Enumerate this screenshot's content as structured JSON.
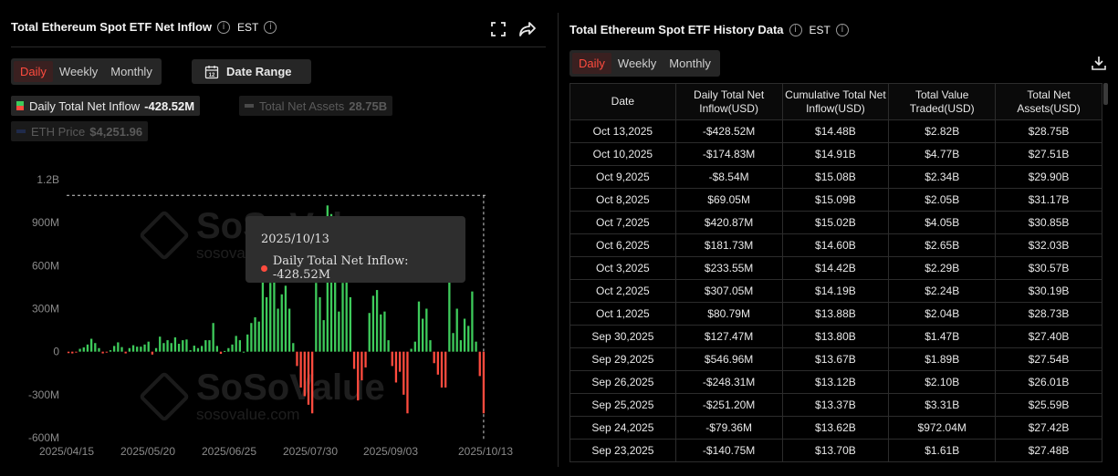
{
  "left": {
    "title": "Total Ethereum Spot ETF Net Inflow",
    "timezone": "EST",
    "tabs": [
      {
        "label": "Daily",
        "active": true
      },
      {
        "label": "Weekly",
        "active": false
      },
      {
        "label": "Monthly",
        "active": false
      }
    ],
    "date_range_label": "Date Range",
    "legend": {
      "daily": {
        "label": "Daily Total Net Inflow",
        "value": "-428.52M"
      },
      "assets": {
        "label": "Total Net Assets",
        "value": "28.75B"
      },
      "eth": {
        "label": "ETH Price",
        "value": "$4,251.96"
      }
    },
    "tooltip": {
      "date": "2025/10/13",
      "text": "Daily Total Net Inflow: -428.52M"
    },
    "watermark": {
      "brand": "SoSoValue",
      "url": "sosovalue.com"
    }
  },
  "chart_data": {
    "type": "bar",
    "y_ticks": [
      "1.2B",
      "900M",
      "600M",
      "300M",
      "0",
      "-300M",
      "-600M"
    ],
    "y_tick_values": [
      1200,
      900,
      600,
      300,
      0,
      -300,
      -600
    ],
    "ylim": [
      -600,
      1200
    ],
    "unit": "M",
    "x_ticks": [
      "2025/04/15",
      "2025/05/20",
      "2025/06/25",
      "2025/07/30",
      "2025/09/03",
      "2025/10/13"
    ],
    "series": [
      {
        "name": "Daily Total Net Inflow",
        "color_positive": "#3ecb5b",
        "color_negative": "#ff4b3e",
        "values": [
          -10,
          -12,
          -5,
          20,
          30,
          50,
          90,
          60,
          25,
          -12,
          -5,
          10,
          40,
          65,
          32,
          -12,
          25,
          45,
          35,
          35,
          50,
          70,
          -20,
          25,
          105,
          60,
          80,
          60,
          100,
          55,
          80,
          85,
          10,
          42,
          25,
          40,
          80,
          80,
          200,
          40,
          -15,
          5,
          25,
          50,
          110,
          80,
          0,
          120,
          200,
          240,
          210,
          600,
          380,
          480,
          520,
          300,
          400,
          460,
          300,
          60,
          -100,
          -250,
          -310,
          -370,
          -430,
          480,
          380,
          220,
          1020,
          960,
          580,
          280,
          480,
          500,
          380,
          -120,
          -340,
          -200,
          -110,
          270,
          390,
          430,
          260,
          280,
          80,
          -100,
          -215,
          -140,
          -300,
          -430,
          20,
          70,
          350,
          230,
          300,
          80,
          -80,
          -160,
          -250,
          -250,
          540,
          130,
          300,
          80,
          230,
          180,
          420,
          70,
          -170,
          -430
        ]
      }
    ],
    "dotted_max_value": 1090,
    "highlight_index": 109
  },
  "right": {
    "title": "Total Ethereum Spot ETF History Data",
    "timezone": "EST",
    "tabs": [
      {
        "label": "Daily",
        "active": true
      },
      {
        "label": "Weekly",
        "active": false
      },
      {
        "label": "Monthly",
        "active": false
      }
    ],
    "headers": [
      "Date",
      "Daily Total Net Inflow(USD)",
      "Cumulative Total Net Inflow(USD)",
      "Total Value Traded(USD)",
      "Total Net Assets(USD)"
    ],
    "rows": [
      {
        "date": "Oct 13,2025",
        "inflow": "-$428.52M",
        "sign": "neg",
        "cum": "$14.48B",
        "traded": "$2.82B",
        "assets": "$28.75B"
      },
      {
        "date": "Oct 10,2025",
        "inflow": "-$174.83M",
        "sign": "neg",
        "cum": "$14.91B",
        "traded": "$4.77B",
        "assets": "$27.51B"
      },
      {
        "date": "Oct 9,2025",
        "inflow": "-$8.54M",
        "sign": "neg",
        "cum": "$15.08B",
        "traded": "$2.34B",
        "assets": "$29.90B"
      },
      {
        "date": "Oct 8,2025",
        "inflow": "$69.05M",
        "sign": "pos",
        "cum": "$15.09B",
        "traded": "$2.05B",
        "assets": "$31.17B"
      },
      {
        "date": "Oct 7,2025",
        "inflow": "$420.87M",
        "sign": "pos",
        "cum": "$15.02B",
        "traded": "$4.05B",
        "assets": "$30.85B"
      },
      {
        "date": "Oct 6,2025",
        "inflow": "$181.73M",
        "sign": "pos",
        "cum": "$14.60B",
        "traded": "$2.65B",
        "assets": "$32.03B"
      },
      {
        "date": "Oct 3,2025",
        "inflow": "$233.55M",
        "sign": "pos",
        "cum": "$14.42B",
        "traded": "$2.29B",
        "assets": "$30.57B"
      },
      {
        "date": "Oct 2,2025",
        "inflow": "$307.05M",
        "sign": "pos",
        "cum": "$14.19B",
        "traded": "$2.24B",
        "assets": "$30.19B"
      },
      {
        "date": "Oct 1,2025",
        "inflow": "$80.79M",
        "sign": "pos",
        "cum": "$13.88B",
        "traded": "$2.04B",
        "assets": "$28.73B"
      },
      {
        "date": "Sep 30,2025",
        "inflow": "$127.47M",
        "sign": "pos",
        "cum": "$13.80B",
        "traded": "$1.47B",
        "assets": "$27.40B"
      },
      {
        "date": "Sep 29,2025",
        "inflow": "$546.96M",
        "sign": "pos",
        "cum": "$13.67B",
        "traded": "$1.89B",
        "assets": "$27.54B"
      },
      {
        "date": "Sep 26,2025",
        "inflow": "-$248.31M",
        "sign": "neg",
        "cum": "$13.12B",
        "traded": "$2.10B",
        "assets": "$26.01B"
      },
      {
        "date": "Sep 25,2025",
        "inflow": "-$251.20M",
        "sign": "neg",
        "cum": "$13.37B",
        "traded": "$3.31B",
        "assets": "$25.59B"
      },
      {
        "date": "Sep 24,2025",
        "inflow": "-$79.36M",
        "sign": "neg",
        "cum": "$13.62B",
        "traded": "$972.04M",
        "assets": "$27.42B"
      },
      {
        "date": "Sep 23,2025",
        "inflow": "-$140.75M",
        "sign": "neg",
        "cum": "$13.70B",
        "traded": "$1.61B",
        "assets": "$27.48B"
      }
    ]
  },
  "colors": {
    "accent": "#ff4b3e",
    "positive": "#3ecb5b",
    "negative": "#ff4b3e",
    "background": "#000000",
    "panel": "#262626"
  }
}
